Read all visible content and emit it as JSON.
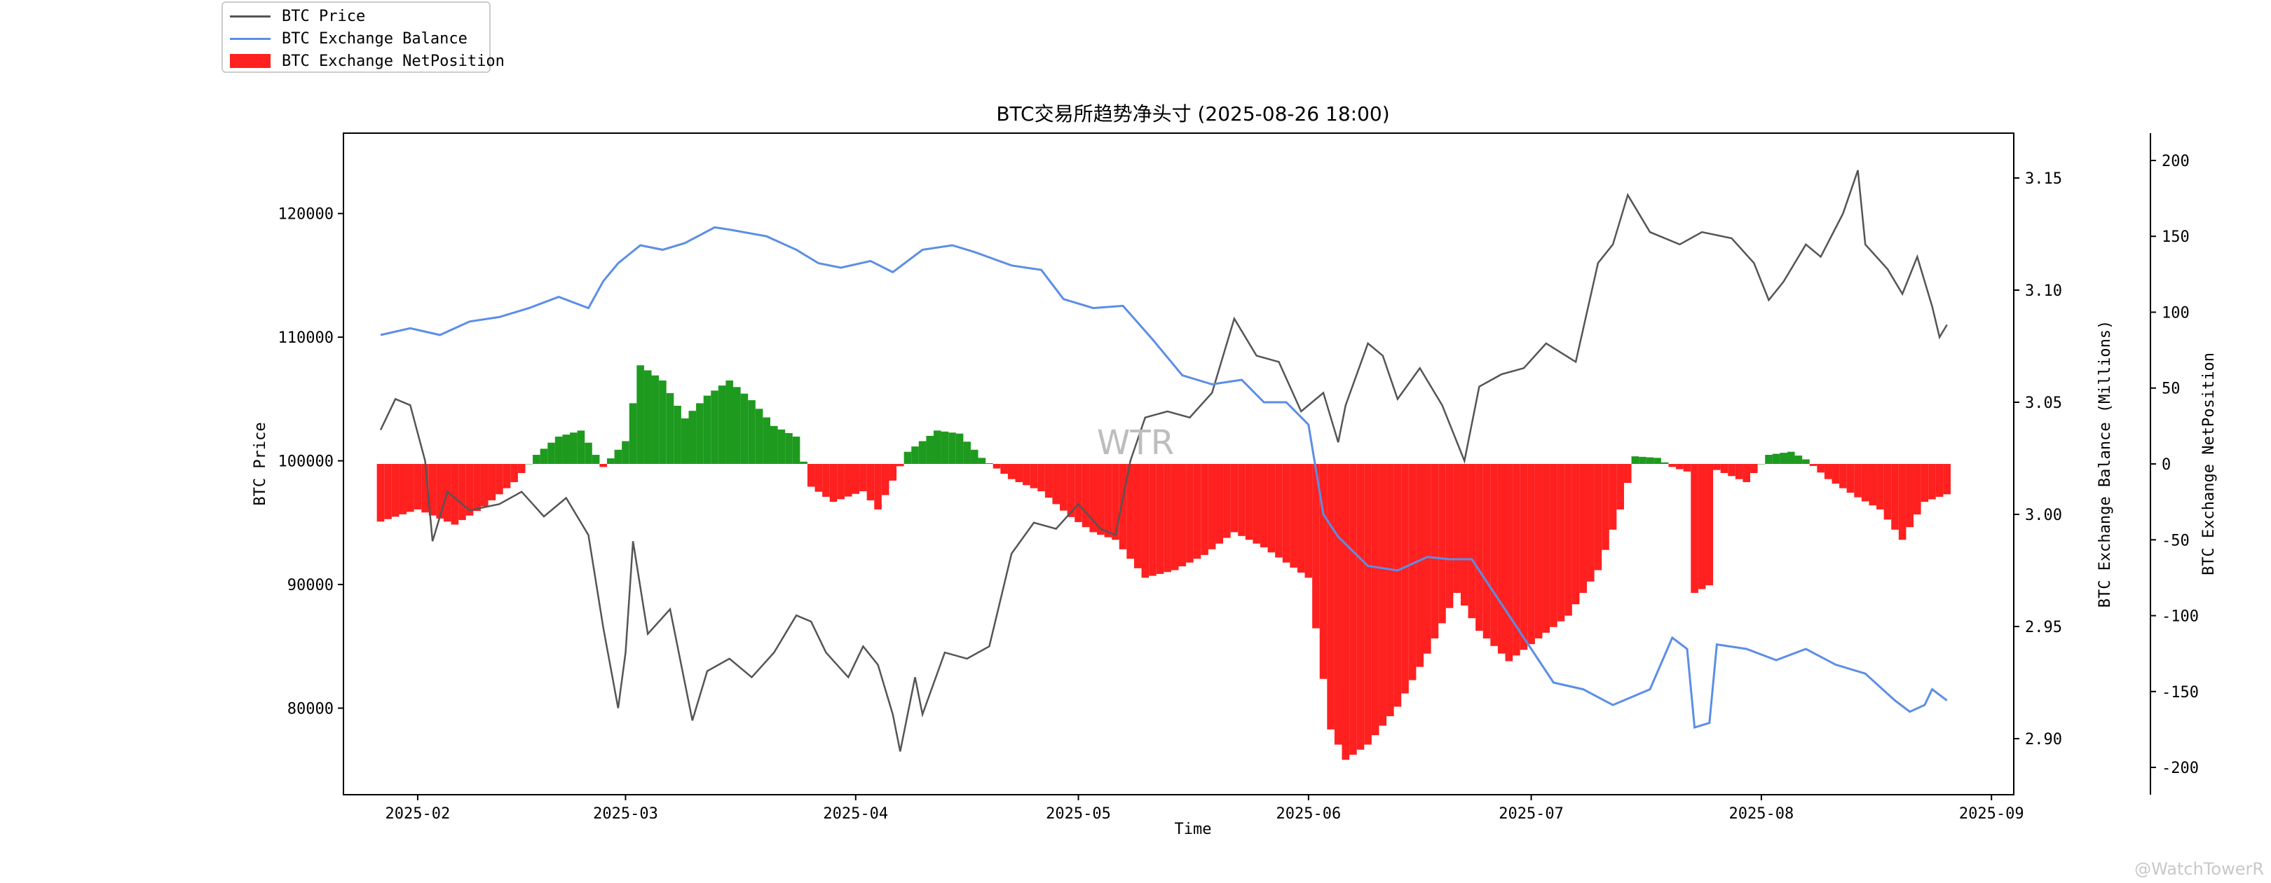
{
  "legend": {
    "items": [
      {
        "label": "BTC Price",
        "color": "#555555",
        "kind": "line"
      },
      {
        "label": "BTC Exchange Balance",
        "color": "#5b8ee6",
        "kind": "line"
      },
      {
        "label": "BTC Exchange NetPosition",
        "color": "#ff2020",
        "kind": "box"
      }
    ]
  },
  "watermark": "@WatchTowerR",
  "chart_data": {
    "type": "line",
    "title": "BTC交易所趋势净头寸 (2025-08-26 18:00)",
    "xlabel": "Time",
    "ylabel_left": "BTC Price",
    "ylabel_right1": "BTC Exchange Balance (Millions)",
    "ylabel_right2": "BTC Exchange NetPosition",
    "plot_text": "WTR",
    "x_ticks": [
      "2025-02",
      "2025-03",
      "2025-04",
      "2025-05",
      "2025-06",
      "2025-07",
      "2025-08",
      "2025-09"
    ],
    "x_tick_dates": [
      "2025-02-01",
      "2025-03-01",
      "2025-04-01",
      "2025-05-01",
      "2025-06-01",
      "2025-07-01",
      "2025-08-01",
      "2025-09-01"
    ],
    "x_range": [
      "2025-01-22",
      "2025-09-04"
    ],
    "price": {
      "name": "BTC Price",
      "color": "#555555",
      "ylim": [
        73000,
        126500
      ],
      "ticks": [
        "80000",
        "90000",
        "100000",
        "110000",
        "120000"
      ],
      "points": [
        [
          "2025-01-27",
          102500
        ],
        [
          "2025-01-29",
          105000
        ],
        [
          "2025-01-31",
          104500
        ],
        [
          "2025-02-02",
          100000
        ],
        [
          "2025-02-03",
          93500
        ],
        [
          "2025-02-05",
          97500
        ],
        [
          "2025-02-08",
          96000
        ],
        [
          "2025-02-12",
          96500
        ],
        [
          "2025-02-15",
          97500
        ],
        [
          "2025-02-18",
          95500
        ],
        [
          "2025-02-21",
          97000
        ],
        [
          "2025-02-24",
          94000
        ],
        [
          "2025-02-26",
          86500
        ],
        [
          "2025-02-28",
          80000
        ],
        [
          "2025-03-01",
          84500
        ],
        [
          "2025-03-02",
          93500
        ],
        [
          "2025-03-04",
          86000
        ],
        [
          "2025-03-07",
          88000
        ],
        [
          "2025-03-10",
          79000
        ],
        [
          "2025-03-12",
          83000
        ],
        [
          "2025-03-15",
          84000
        ],
        [
          "2025-03-18",
          82500
        ],
        [
          "2025-03-21",
          84500
        ],
        [
          "2025-03-24",
          87500
        ],
        [
          "2025-03-26",
          87000
        ],
        [
          "2025-03-28",
          84500
        ],
        [
          "2025-03-31",
          82500
        ],
        [
          "2025-04-02",
          85000
        ],
        [
          "2025-04-04",
          83500
        ],
        [
          "2025-04-06",
          79500
        ],
        [
          "2025-04-07",
          76500
        ],
        [
          "2025-04-09",
          82500
        ],
        [
          "2025-04-10",
          79500
        ],
        [
          "2025-04-13",
          84500
        ],
        [
          "2025-04-16",
          84000
        ],
        [
          "2025-04-19",
          85000
        ],
        [
          "2025-04-22",
          92500
        ],
        [
          "2025-04-25",
          95000
        ],
        [
          "2025-04-28",
          94500
        ],
        [
          "2025-05-01",
          96500
        ],
        [
          "2025-05-04",
          94500
        ],
        [
          "2025-05-06",
          94000
        ],
        [
          "2025-05-08",
          100000
        ],
        [
          "2025-05-10",
          103500
        ],
        [
          "2025-05-13",
          104000
        ],
        [
          "2025-05-16",
          103500
        ],
        [
          "2025-05-19",
          105500
        ],
        [
          "2025-05-22",
          111500
        ],
        [
          "2025-05-25",
          108500
        ],
        [
          "2025-05-28",
          108000
        ],
        [
          "2025-05-31",
          104000
        ],
        [
          "2025-06-03",
          105500
        ],
        [
          "2025-06-05",
          101500
        ],
        [
          "2025-06-06",
          104500
        ],
        [
          "2025-06-09",
          109500
        ],
        [
          "2025-06-11",
          108500
        ],
        [
          "2025-06-13",
          105000
        ],
        [
          "2025-06-16",
          107500
        ],
        [
          "2025-06-19",
          104500
        ],
        [
          "2025-06-22",
          100000
        ],
        [
          "2025-06-24",
          106000
        ],
        [
          "2025-06-27",
          107000
        ],
        [
          "2025-06-30",
          107500
        ],
        [
          "2025-07-03",
          109500
        ],
        [
          "2025-07-07",
          108000
        ],
        [
          "2025-07-10",
          116000
        ],
        [
          "2025-07-12",
          117500
        ],
        [
          "2025-07-14",
          121500
        ],
        [
          "2025-07-17",
          118500
        ],
        [
          "2025-07-21",
          117500
        ],
        [
          "2025-07-24",
          118500
        ],
        [
          "2025-07-28",
          118000
        ],
        [
          "2025-07-31",
          116000
        ],
        [
          "2025-08-02",
          113000
        ],
        [
          "2025-08-04",
          114500
        ],
        [
          "2025-08-07",
          117500
        ],
        [
          "2025-08-09",
          116500
        ],
        [
          "2025-08-12",
          120000
        ],
        [
          "2025-08-14",
          123500
        ],
        [
          "2025-08-15",
          117500
        ],
        [
          "2025-08-18",
          115500
        ],
        [
          "2025-08-20",
          113500
        ],
        [
          "2025-08-22",
          116500
        ],
        [
          "2025-08-24",
          112500
        ],
        [
          "2025-08-25",
          110000
        ],
        [
          "2025-08-26",
          111000
        ]
      ]
    },
    "balance": {
      "name": "BTC Exchange Balance",
      "color": "#5b8ee6",
      "unit": "Millions",
      "ylim": [
        2.875,
        3.17
      ],
      "ticks": [
        "2.90",
        "2.95",
        "3.00",
        "3.05",
        "3.10",
        "3.15"
      ],
      "points": [
        [
          "2025-01-27",
          3.08
        ],
        [
          "2025-01-31",
          3.083
        ],
        [
          "2025-02-04",
          3.08
        ],
        [
          "2025-02-08",
          3.086
        ],
        [
          "2025-02-12",
          3.088
        ],
        [
          "2025-02-16",
          3.092
        ],
        [
          "2025-02-20",
          3.097
        ],
        [
          "2025-02-24",
          3.092
        ],
        [
          "2025-02-26",
          3.104
        ],
        [
          "2025-02-28",
          3.112
        ],
        [
          "2025-03-03",
          3.12
        ],
        [
          "2025-03-06",
          3.118
        ],
        [
          "2025-03-09",
          3.121
        ],
        [
          "2025-03-13",
          3.128
        ],
        [
          "2025-03-15",
          3.127
        ],
        [
          "2025-03-20",
          3.124
        ],
        [
          "2025-03-24",
          3.118
        ],
        [
          "2025-03-27",
          3.112
        ],
        [
          "2025-03-30",
          3.11
        ],
        [
          "2025-04-03",
          3.113
        ],
        [
          "2025-04-06",
          3.108
        ],
        [
          "2025-04-10",
          3.118
        ],
        [
          "2025-04-14",
          3.12
        ],
        [
          "2025-04-17",
          3.117
        ],
        [
          "2025-04-22",
          3.111
        ],
        [
          "2025-04-26",
          3.109
        ],
        [
          "2025-04-29",
          3.096
        ],
        [
          "2025-05-03",
          3.092
        ],
        [
          "2025-05-07",
          3.093
        ],
        [
          "2025-05-11",
          3.078
        ],
        [
          "2025-05-15",
          3.062
        ],
        [
          "2025-05-19",
          3.058
        ],
        [
          "2025-05-23",
          3.06
        ],
        [
          "2025-05-26",
          3.05
        ],
        [
          "2025-05-29",
          3.05
        ],
        [
          "2025-06-01",
          3.04
        ],
        [
          "2025-06-03",
          3.0
        ],
        [
          "2025-06-05",
          2.99
        ],
        [
          "2025-06-09",
          2.977
        ],
        [
          "2025-06-13",
          2.975
        ],
        [
          "2025-06-17",
          2.981
        ],
        [
          "2025-06-20",
          2.98
        ],
        [
          "2025-06-23",
          2.98
        ],
        [
          "2025-06-27",
          2.96
        ],
        [
          "2025-07-01",
          2.94
        ],
        [
          "2025-07-04",
          2.925
        ],
        [
          "2025-07-08",
          2.922
        ],
        [
          "2025-07-12",
          2.915
        ],
        [
          "2025-07-17",
          2.922
        ],
        [
          "2025-07-20",
          2.945
        ],
        [
          "2025-07-22",
          2.94
        ],
        [
          "2025-07-23",
          2.905
        ],
        [
          "2025-07-25",
          2.907
        ],
        [
          "2025-07-26",
          2.942
        ],
        [
          "2025-07-30",
          2.94
        ],
        [
          "2025-08-03",
          2.935
        ],
        [
          "2025-08-07",
          2.94
        ],
        [
          "2025-08-11",
          2.933
        ],
        [
          "2025-08-15",
          2.929
        ],
        [
          "2025-08-19",
          2.917
        ],
        [
          "2025-08-21",
          2.912
        ],
        [
          "2025-08-23",
          2.915
        ],
        [
          "2025-08-24",
          2.922
        ],
        [
          "2025-08-26",
          2.917
        ]
      ]
    },
    "netposition": {
      "name": "BTC Exchange NetPosition",
      "ylim": [
        -218,
        218
      ],
      "ticks": [
        "-200",
        "-150",
        "-100",
        "-50",
        "0",
        "50",
        "100",
        "150",
        "200"
      ],
      "positive_color": "#1e9a1e",
      "negative_color": "#ff2020",
      "points": [
        [
          "2025-01-27",
          -38
        ],
        [
          "2025-02-01",
          -30
        ],
        [
          "2025-02-06",
          -40
        ],
        [
          "2025-02-10",
          -28
        ],
        [
          "2025-02-14",
          -12
        ],
        [
          "2025-02-17",
          6
        ],
        [
          "2025-02-20",
          18
        ],
        [
          "2025-02-23",
          22
        ],
        [
          "2025-02-26",
          -2
        ],
        [
          "2025-03-01",
          15
        ],
        [
          "2025-03-03",
          65
        ],
        [
          "2025-03-06",
          55
        ],
        [
          "2025-03-09",
          30
        ],
        [
          "2025-03-12",
          45
        ],
        [
          "2025-03-15",
          55
        ],
        [
          "2025-03-18",
          42
        ],
        [
          "2025-03-21",
          25
        ],
        [
          "2025-03-24",
          18
        ],
        [
          "2025-03-26",
          -15
        ],
        [
          "2025-03-29",
          -25
        ],
        [
          "2025-04-02",
          -18
        ],
        [
          "2025-04-04",
          -30
        ],
        [
          "2025-04-08",
          8
        ],
        [
          "2025-04-12",
          22
        ],
        [
          "2025-04-15",
          20
        ],
        [
          "2025-04-18",
          4
        ],
        [
          "2025-04-22",
          -10
        ],
        [
          "2025-04-26",
          -18
        ],
        [
          "2025-04-30",
          -35
        ],
        [
          "2025-05-03",
          -45
        ],
        [
          "2025-05-06",
          -50
        ],
        [
          "2025-05-10",
          -75
        ],
        [
          "2025-05-14",
          -70
        ],
        [
          "2025-05-18",
          -60
        ],
        [
          "2025-05-22",
          -45
        ],
        [
          "2025-05-26",
          -55
        ],
        [
          "2025-05-29",
          -65
        ],
        [
          "2025-06-01",
          -75
        ],
        [
          "2025-06-04",
          -175
        ],
        [
          "2025-06-06",
          -195
        ],
        [
          "2025-06-09",
          -185
        ],
        [
          "2025-06-13",
          -160
        ],
        [
          "2025-06-17",
          -125
        ],
        [
          "2025-06-21",
          -85
        ],
        [
          "2025-06-24",
          -110
        ],
        [
          "2025-06-28",
          -130
        ],
        [
          "2025-07-02",
          -115
        ],
        [
          "2025-07-06",
          -100
        ],
        [
          "2025-07-10",
          -70
        ],
        [
          "2025-07-13",
          -30
        ],
        [
          "2025-07-15",
          5
        ],
        [
          "2025-07-18",
          4
        ],
        [
          "2025-07-20",
          -2
        ],
        [
          "2025-07-22",
          -5
        ],
        [
          "2025-07-23",
          -85
        ],
        [
          "2025-07-25",
          -80
        ],
        [
          "2025-07-26",
          -4
        ],
        [
          "2025-07-30",
          -12
        ],
        [
          "2025-08-02",
          6
        ],
        [
          "2025-08-05",
          8
        ],
        [
          "2025-08-07",
          3
        ],
        [
          "2025-08-10",
          -10
        ],
        [
          "2025-08-14",
          -22
        ],
        [
          "2025-08-17",
          -30
        ],
        [
          "2025-08-20",
          -50
        ],
        [
          "2025-08-23",
          -25
        ],
        [
          "2025-08-26",
          -20
        ]
      ]
    }
  }
}
